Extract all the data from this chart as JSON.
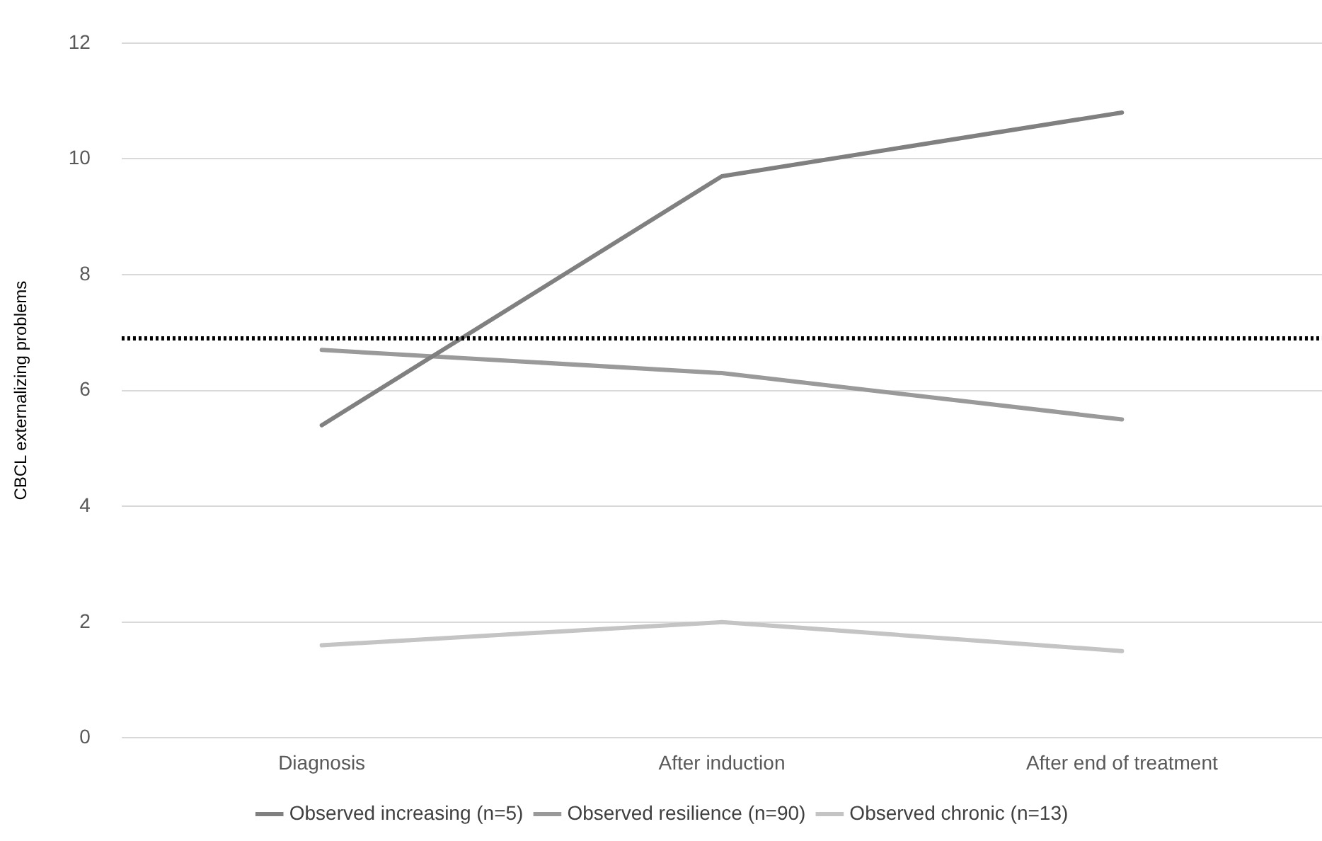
{
  "chart_data": {
    "type": "line",
    "ylabel": "CBCL externalizing problems",
    "categories": [
      "Diagnosis",
      "After induction",
      "After end of treatment"
    ],
    "series": [
      {
        "name": "Observed increasing (n=5)",
        "color": "#808080",
        "values": [
          5.4,
          9.7,
          10.8
        ]
      },
      {
        "name": "Observed resilience (n=90)",
        "color": "#9a9a9a",
        "values": [
          6.7,
          6.3,
          5.5
        ]
      },
      {
        "name": "Observed chronic (n=13)",
        "color": "#c4c4c4",
        "values": [
          1.6,
          2.0,
          1.5
        ]
      }
    ],
    "ylim": [
      0,
      12
    ],
    "yticks": [
      0,
      2,
      4,
      6,
      8,
      10,
      12
    ],
    "grid": "y",
    "legend": "bottom",
    "marker": "none",
    "line_style": "solid",
    "ref_lines": [
      {
        "axis": "y",
        "value": 6.9,
        "color": "#000000",
        "line_style": "dotted"
      }
    ]
  }
}
